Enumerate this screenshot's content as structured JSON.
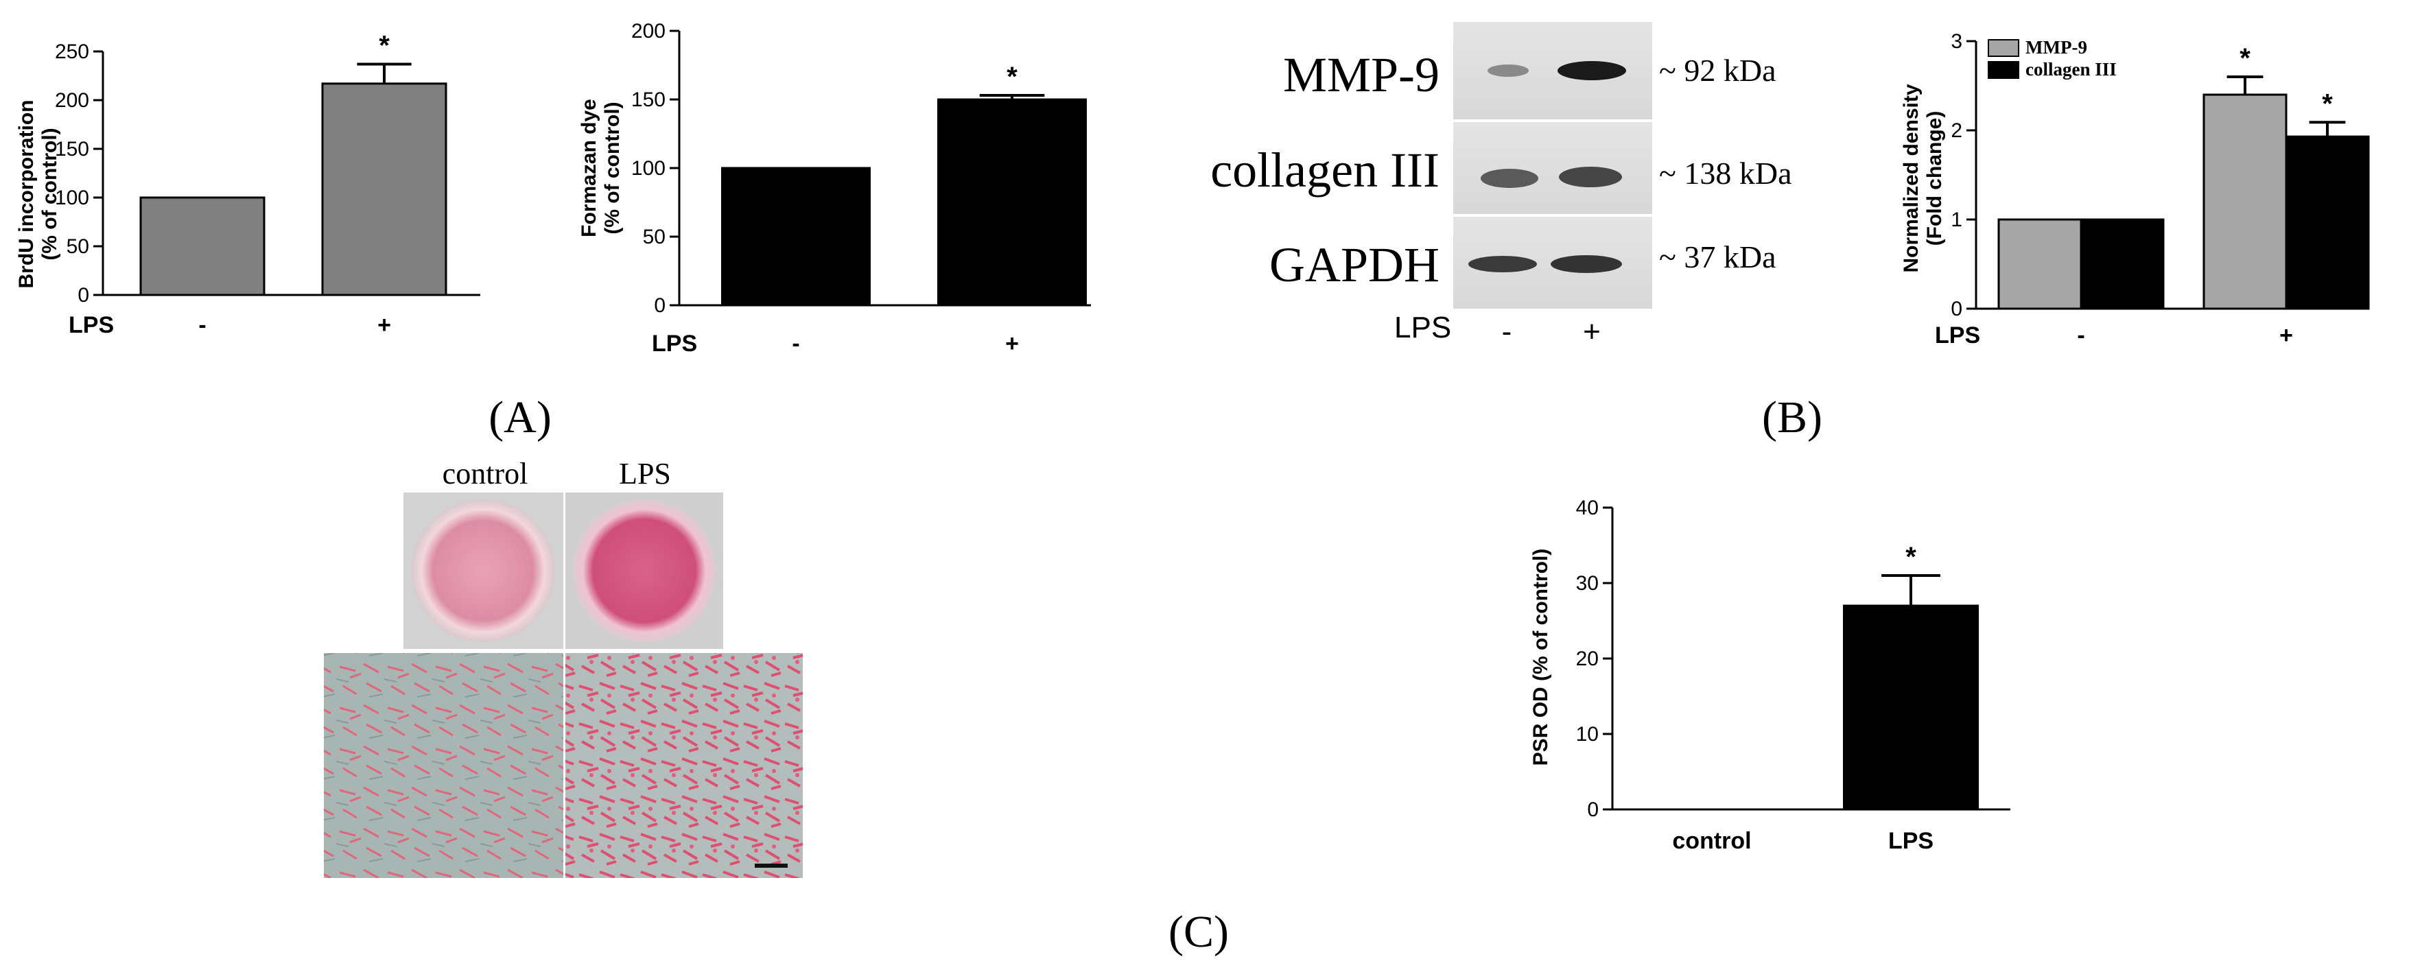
{
  "figure": {
    "panels": [
      {
        "label": "(A)"
      },
      {
        "label": "(B)"
      },
      {
        "label": "(C)"
      }
    ]
  },
  "chart_data": [
    {
      "id": "A1",
      "type": "bar",
      "title": "",
      "ylabel": "BrdU incorporation\n(% of control)",
      "xlabel": "LPS",
      "categories": [
        "-",
        "+"
      ],
      "values": [
        100,
        217
      ],
      "errors": [
        0,
        20
      ],
      "significance": [
        "",
        "*"
      ],
      "ylim": [
        0,
        250
      ],
      "yticks": [
        0,
        50,
        100,
        150,
        200,
        250
      ],
      "colors": [
        "#808080",
        "#808080"
      ]
    },
    {
      "id": "A2",
      "type": "bar",
      "title": "",
      "ylabel": "Formazan dye\n(% of control)",
      "xlabel": "LPS",
      "categories": [
        "-",
        "+"
      ],
      "values": [
        100,
        150
      ],
      "errors": [
        0,
        3
      ],
      "significance": [
        "",
        "*"
      ],
      "ylim": [
        0,
        200
      ],
      "yticks": [
        0,
        50,
        100,
        150,
        200
      ],
      "colors": [
        "#000000",
        "#000000"
      ]
    },
    {
      "id": "B2",
      "type": "bar",
      "title": "",
      "ylabel": "Normalized density\n(Fold change)",
      "xlabel": "LPS",
      "categories": [
        "-",
        "+"
      ],
      "series": [
        {
          "name": "MMP-9",
          "values": [
            1,
            2.4
          ],
          "errors": [
            0,
            0.2
          ],
          "significance": [
            "",
            "*"
          ],
          "color": "#a6a6a6"
        },
        {
          "name": "collagen III",
          "values": [
            1,
            1.93
          ],
          "errors": [
            0,
            0.16
          ],
          "significance": [
            "",
            "*"
          ],
          "color": "#000000"
        }
      ],
      "ylim": [
        0,
        3
      ],
      "yticks": [
        0,
        1,
        2,
        3
      ],
      "legend": "top-left"
    },
    {
      "id": "C2",
      "type": "bar",
      "title": "",
      "ylabel": "PSR OD (% of control)",
      "xlabel": "",
      "categories": [
        "control",
        "LPS"
      ],
      "values": [
        0,
        27
      ],
      "errors": [
        0,
        4
      ],
      "significance": [
        "",
        "*"
      ],
      "ylim": [
        0,
        40
      ],
      "yticks": [
        0,
        10,
        20,
        30,
        40
      ],
      "colors": [
        "#000000",
        "#000000"
      ]
    }
  ],
  "western_blot": {
    "rows": [
      {
        "protein": "MMP-9",
        "size": "~ 92 kDa"
      },
      {
        "protein": "collagen III",
        "size": "~ 138 kDa"
      },
      {
        "protein": "GAPDH",
        "size": "~ 37 kDa"
      }
    ],
    "condition_label": "LPS",
    "lanes": [
      "-",
      "+"
    ]
  },
  "staining": {
    "columns": [
      "control",
      "LPS"
    ]
  }
}
